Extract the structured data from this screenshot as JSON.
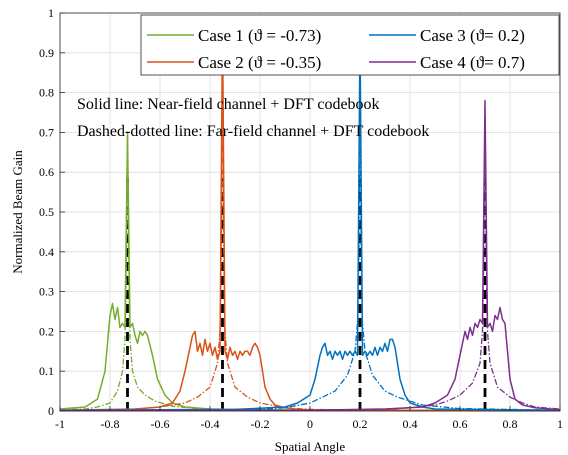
{
  "chart_data": {
    "type": "line",
    "xlabel": "Spatial Angle",
    "ylabel": "Normalized Beam Gain",
    "xlim": [
      -1,
      1
    ],
    "ylim": [
      0,
      1
    ],
    "xticks": [
      "-1",
      "-0.8",
      "-0.6",
      "-0.4",
      "-0.2",
      "0",
      "0.2",
      "0.4",
      "0.6",
      "0.8",
      "1"
    ],
    "yticks": [
      "0",
      "0.1",
      "0.2",
      "0.3",
      "0.4",
      "0.5",
      "0.6",
      "0.7",
      "0.8",
      "0.9",
      "1"
    ],
    "grid": true,
    "legend_position": "top-right",
    "annotations": [
      "Solid line: Near-field channel + DFT codebook",
      "Dashed-dotted line: Far-field channel + DFT codebook"
    ],
    "series": [
      {
        "name": "Case 1 (ϑ = -0.73)",
        "color": "#77ac30",
        "near_field": {
          "x": [
            -1.0,
            -0.9,
            -0.85,
            -0.82,
            -0.8,
            -0.79,
            -0.78,
            -0.77,
            -0.76,
            -0.75,
            -0.74,
            -0.73,
            -0.72,
            -0.71,
            -0.7,
            -0.69,
            -0.68,
            -0.67,
            -0.66,
            -0.65,
            -0.63,
            -0.61,
            -0.58,
            -0.55,
            -0.5,
            -0.4,
            -0.2,
            0.0,
            0.5,
            1.0
          ],
          "y": [
            0.005,
            0.01,
            0.03,
            0.1,
            0.24,
            0.27,
            0.23,
            0.26,
            0.21,
            0.22,
            0.21,
            0.7,
            0.21,
            0.22,
            0.19,
            0.17,
            0.2,
            0.19,
            0.2,
            0.19,
            0.14,
            0.08,
            0.04,
            0.02,
            0.01,
            0.005,
            0.003,
            0.002,
            0.001,
            0.001
          ]
        },
        "far_field": {
          "x": [
            -1.0,
            -0.9,
            -0.85,
            -0.8,
            -0.77,
            -0.75,
            -0.74,
            -0.735,
            -0.73,
            -0.725,
            -0.72,
            -0.71,
            -0.69,
            -0.66,
            -0.62,
            -0.55,
            -0.45,
            -0.3,
            0.0,
            0.5,
            1.0
          ],
          "y": [
            0.003,
            0.005,
            0.01,
            0.02,
            0.05,
            0.1,
            0.18,
            0.35,
            0.69,
            0.35,
            0.18,
            0.1,
            0.06,
            0.04,
            0.025,
            0.012,
            0.006,
            0.003,
            0.002,
            0.001,
            0.001
          ]
        }
      },
      {
        "name": "Case 2 (ϑ = -0.35)",
        "color": "#d95319",
        "near_field": {
          "x": [
            -1.0,
            -0.7,
            -0.6,
            -0.55,
            -0.52,
            -0.5,
            -0.48,
            -0.47,
            -0.46,
            -0.45,
            -0.44,
            -0.43,
            -0.42,
            -0.41,
            -0.4,
            -0.39,
            -0.38,
            -0.37,
            -0.36,
            -0.35,
            -0.34,
            -0.33,
            -0.32,
            -0.31,
            -0.3,
            -0.29,
            -0.28,
            -0.27,
            -0.26,
            -0.25,
            -0.24,
            -0.23,
            -0.22,
            -0.21,
            -0.2,
            -0.19,
            -0.18,
            -0.16,
            -0.14,
            -0.1,
            -0.05,
            0.0,
            0.3,
            1.0
          ],
          "y": [
            0.002,
            0.005,
            0.01,
            0.02,
            0.05,
            0.1,
            0.16,
            0.19,
            0.2,
            0.15,
            0.17,
            0.14,
            0.18,
            0.15,
            0.17,
            0.14,
            0.16,
            0.13,
            0.15,
            0.98,
            0.15,
            0.13,
            0.16,
            0.14,
            0.15,
            0.13,
            0.15,
            0.14,
            0.15,
            0.15,
            0.14,
            0.16,
            0.17,
            0.16,
            0.14,
            0.1,
            0.06,
            0.03,
            0.015,
            0.008,
            0.004,
            0.003,
            0.002,
            0.001
          ]
        },
        "far_field": {
          "x": [
            -1.0,
            -0.7,
            -0.6,
            -0.5,
            -0.45,
            -0.4,
            -0.37,
            -0.36,
            -0.355,
            -0.35,
            -0.345,
            -0.34,
            -0.33,
            -0.3,
            -0.25,
            -0.2,
            -0.1,
            0.0,
            0.3,
            1.0
          ],
          "y": [
            0.002,
            0.004,
            0.01,
            0.02,
            0.035,
            0.06,
            0.12,
            0.2,
            0.4,
            0.76,
            0.4,
            0.2,
            0.12,
            0.06,
            0.035,
            0.02,
            0.008,
            0.004,
            0.002,
            0.001
          ]
        }
      },
      {
        "name": "Case 3 (ϑ= 0.2)",
        "color": "#0072bd",
        "near_field": {
          "x": [
            -1.0,
            -0.3,
            -0.1,
            -0.05,
            0.0,
            0.02,
            0.04,
            0.05,
            0.06,
            0.07,
            0.08,
            0.09,
            0.1,
            0.11,
            0.12,
            0.13,
            0.14,
            0.15,
            0.16,
            0.17,
            0.18,
            0.19,
            0.2,
            0.21,
            0.22,
            0.23,
            0.24,
            0.25,
            0.26,
            0.27,
            0.28,
            0.29,
            0.3,
            0.31,
            0.32,
            0.33,
            0.34,
            0.35,
            0.36,
            0.38,
            0.4,
            0.45,
            0.5,
            1.0
          ],
          "y": [
            0.002,
            0.004,
            0.01,
            0.02,
            0.04,
            0.08,
            0.14,
            0.16,
            0.17,
            0.14,
            0.15,
            0.13,
            0.15,
            0.14,
            0.15,
            0.13,
            0.15,
            0.14,
            0.15,
            0.14,
            0.15,
            0.14,
            0.95,
            0.14,
            0.15,
            0.14,
            0.15,
            0.14,
            0.16,
            0.14,
            0.16,
            0.15,
            0.17,
            0.15,
            0.18,
            0.18,
            0.16,
            0.12,
            0.08,
            0.04,
            0.02,
            0.01,
            0.005,
            0.002
          ]
        },
        "far_field": {
          "x": [
            -1.0,
            -0.2,
            -0.1,
            0.0,
            0.05,
            0.1,
            0.15,
            0.18,
            0.19,
            0.195,
            0.2,
            0.205,
            0.21,
            0.22,
            0.25,
            0.3,
            0.35,
            0.45,
            0.6,
            1.0
          ],
          "y": [
            0.002,
            0.004,
            0.008,
            0.02,
            0.035,
            0.05,
            0.09,
            0.15,
            0.22,
            0.4,
            0.78,
            0.4,
            0.22,
            0.15,
            0.09,
            0.05,
            0.035,
            0.015,
            0.006,
            0.002
          ]
        }
      },
      {
        "name": "Case 4 (ϑ= 0.7)",
        "color": "#7e2f8e",
        "near_field": {
          "x": [
            -1.0,
            0.0,
            0.3,
            0.45,
            0.5,
            0.55,
            0.58,
            0.6,
            0.62,
            0.63,
            0.64,
            0.65,
            0.66,
            0.67,
            0.68,
            0.69,
            0.7,
            0.71,
            0.72,
            0.73,
            0.74,
            0.75,
            0.76,
            0.77,
            0.78,
            0.8,
            0.82,
            0.85,
            0.9,
            1.0
          ],
          "y": [
            0.001,
            0.002,
            0.005,
            0.01,
            0.02,
            0.04,
            0.08,
            0.14,
            0.2,
            0.18,
            0.21,
            0.19,
            0.22,
            0.21,
            0.23,
            0.22,
            0.78,
            0.21,
            0.22,
            0.2,
            0.24,
            0.23,
            0.26,
            0.23,
            0.22,
            0.08,
            0.03,
            0.015,
            0.008,
            0.003
          ]
        },
        "far_field": {
          "x": [
            -1.0,
            0.0,
            0.3,
            0.4,
            0.5,
            0.55,
            0.6,
            0.65,
            0.68,
            0.69,
            0.695,
            0.7,
            0.705,
            0.71,
            0.72,
            0.75,
            0.8,
            0.85,
            0.9,
            1.0
          ],
          "y": [
            0.001,
            0.002,
            0.004,
            0.008,
            0.015,
            0.025,
            0.04,
            0.07,
            0.12,
            0.2,
            0.38,
            0.73,
            0.38,
            0.2,
            0.12,
            0.06,
            0.035,
            0.02,
            0.01,
            0.005
          ]
        }
      }
    ],
    "reference_lines": {
      "style": "dashed",
      "color": "#000000",
      "x": [
        -0.73,
        -0.35,
        0.2,
        0.7
      ],
      "y_top": [
        0.59,
        0.59,
        0.59,
        0.59
      ]
    }
  }
}
